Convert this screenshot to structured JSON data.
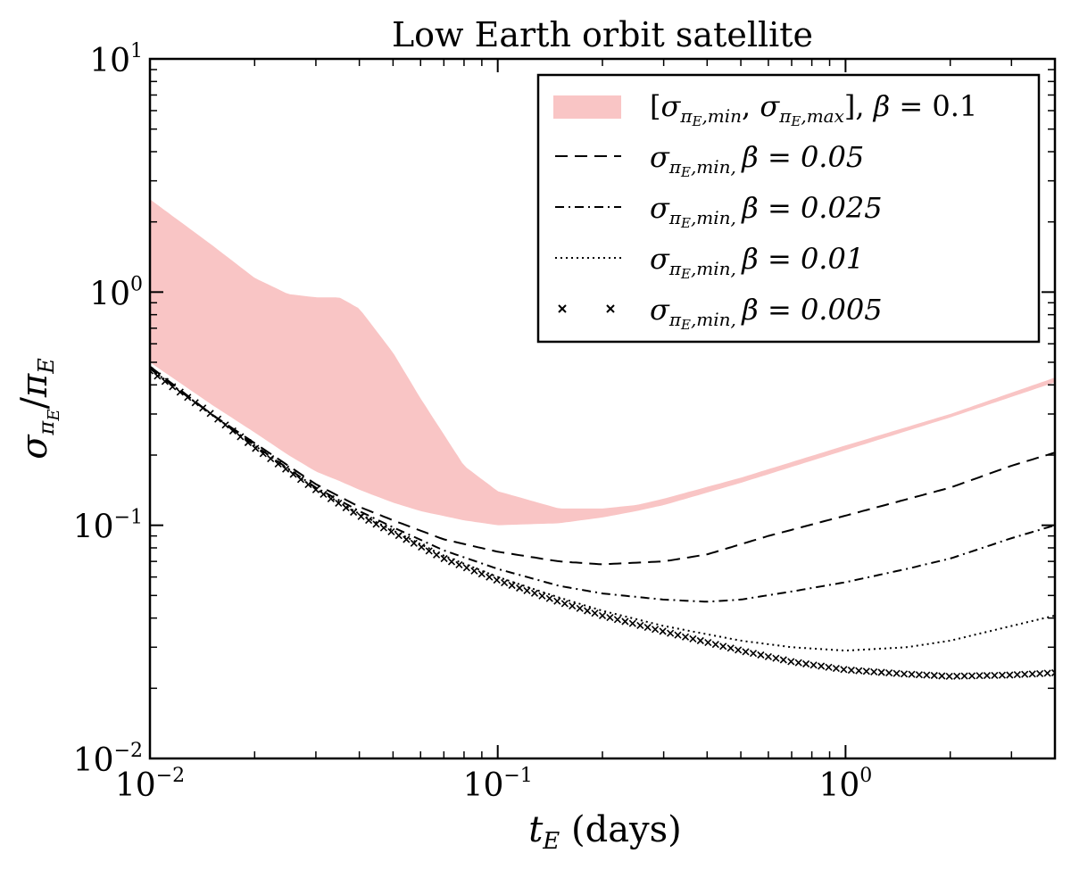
{
  "chart_data": {
    "type": "line",
    "title": "Low Earth orbit satellite",
    "xlabel": "t_E (days)",
    "ylabel": "σ_πE / π_E",
    "xscale": "log",
    "yscale": "log",
    "xlim": [
      0.01,
      4.0
    ],
    "ylim": [
      0.01,
      10
    ],
    "x_ticks": [
      {
        "value": 0.01,
        "base": "10",
        "exp": "−2"
      },
      {
        "value": 0.1,
        "base": "10",
        "exp": "−1"
      },
      {
        "value": 1,
        "base": "10",
        "exp": "0"
      }
    ],
    "y_ticks": [
      {
        "value": 0.01,
        "base": "10",
        "exp": "−2"
      },
      {
        "value": 0.1,
        "base": "10",
        "exp": "−1"
      },
      {
        "value": 1,
        "base": "10",
        "exp": "0"
      },
      {
        "value": 10,
        "base": "10",
        "exp": "1"
      }
    ],
    "legend_position": "top-right",
    "band": {
      "name": "[σ_πE,min, σ_πE,max], β = 0.1",
      "color": "#f9c5c5",
      "x": [
        0.01,
        0.015,
        0.02,
        0.025,
        0.03,
        0.035,
        0.04,
        0.05,
        0.06,
        0.08,
        0.1,
        0.15,
        0.2,
        0.25,
        0.3,
        0.5,
        1.0,
        2.0,
        4.0
      ],
      "upper": [
        2.5,
        1.6,
        1.15,
        0.98,
        0.95,
        0.95,
        0.85,
        0.55,
        0.35,
        0.18,
        0.14,
        0.118,
        0.118,
        0.122,
        0.13,
        0.16,
        0.22,
        0.3,
        0.43
      ],
      "lower": [
        0.5,
        0.33,
        0.25,
        0.2,
        0.17,
        0.155,
        0.142,
        0.125,
        0.115,
        0.105,
        0.1,
        0.102,
        0.108,
        0.115,
        0.122,
        0.152,
        0.21,
        0.29,
        0.41
      ]
    },
    "series": [
      {
        "name": "σ_πE,min, β = 0.05",
        "style": "dashed",
        "x": [
          0.01,
          0.015,
          0.02,
          0.03,
          0.04,
          0.05,
          0.07,
          0.1,
          0.15,
          0.2,
          0.3,
          0.4,
          0.6,
          1.0,
          2.0,
          3.0,
          4.0
        ],
        "values": [
          0.48,
          0.3,
          0.225,
          0.15,
          0.12,
          0.105,
          0.087,
          0.077,
          0.07,
          0.068,
          0.07,
          0.075,
          0.09,
          0.11,
          0.145,
          0.18,
          0.205
        ]
      },
      {
        "name": "σ_πE,min, β = 0.025",
        "style": "dashdot",
        "x": [
          0.01,
          0.015,
          0.02,
          0.03,
          0.04,
          0.05,
          0.07,
          0.1,
          0.15,
          0.2,
          0.3,
          0.4,
          0.5,
          0.7,
          1.0,
          1.5,
          2.0,
          3.0,
          4.0
        ],
        "values": [
          0.47,
          0.3,
          0.22,
          0.145,
          0.115,
          0.098,
          0.078,
          0.065,
          0.055,
          0.051,
          0.048,
          0.047,
          0.048,
          0.052,
          0.057,
          0.065,
          0.072,
          0.088,
          0.1
        ]
      },
      {
        "name": "σ_πE,min, β = 0.01",
        "style": "dotted",
        "x": [
          0.01,
          0.015,
          0.02,
          0.03,
          0.04,
          0.05,
          0.07,
          0.1,
          0.15,
          0.2,
          0.3,
          0.5,
          0.7,
          1.0,
          1.5,
          2.0,
          3.0,
          4.0
        ],
        "values": [
          0.47,
          0.3,
          0.22,
          0.143,
          0.112,
          0.095,
          0.074,
          0.06,
          0.049,
          0.043,
          0.037,
          0.032,
          0.03,
          0.029,
          0.03,
          0.032,
          0.037,
          0.041
        ]
      },
      {
        "name": "σ_πE,min, β = 0.005",
        "style": "x-markers",
        "x": [
          0.01,
          0.015,
          0.02,
          0.03,
          0.04,
          0.05,
          0.07,
          0.1,
          0.15,
          0.2,
          0.3,
          0.5,
          0.7,
          1.0,
          1.5,
          2.0,
          3.0,
          4.0
        ],
        "values": [
          0.46,
          0.3,
          0.215,
          0.142,
          0.11,
          0.093,
          0.072,
          0.058,
          0.047,
          0.041,
          0.035,
          0.029,
          0.026,
          0.024,
          0.023,
          0.0225,
          0.0228,
          0.0233
        ]
      }
    ]
  },
  "legend": {
    "band_label": "[σ_πE,min, σ_πE,max], β = 0.1",
    "entries": [
      {
        "prefix": "σ",
        "sub": "π",
        "subsub": "E",
        "suffix": ",min, ",
        "beta": "β = 0.05"
      },
      {
        "prefix": "σ",
        "sub": "π",
        "subsub": "E",
        "suffix": ",min, ",
        "beta": "β = 0.025"
      },
      {
        "prefix": "σ",
        "sub": "π",
        "subsub": "E",
        "suffix": ",min, ",
        "beta": "β = 0.01"
      },
      {
        "prefix": "σ",
        "sub": "π",
        "subsub": "E",
        "suffix": ",min, ",
        "beta": "β = 0.005"
      }
    ]
  }
}
